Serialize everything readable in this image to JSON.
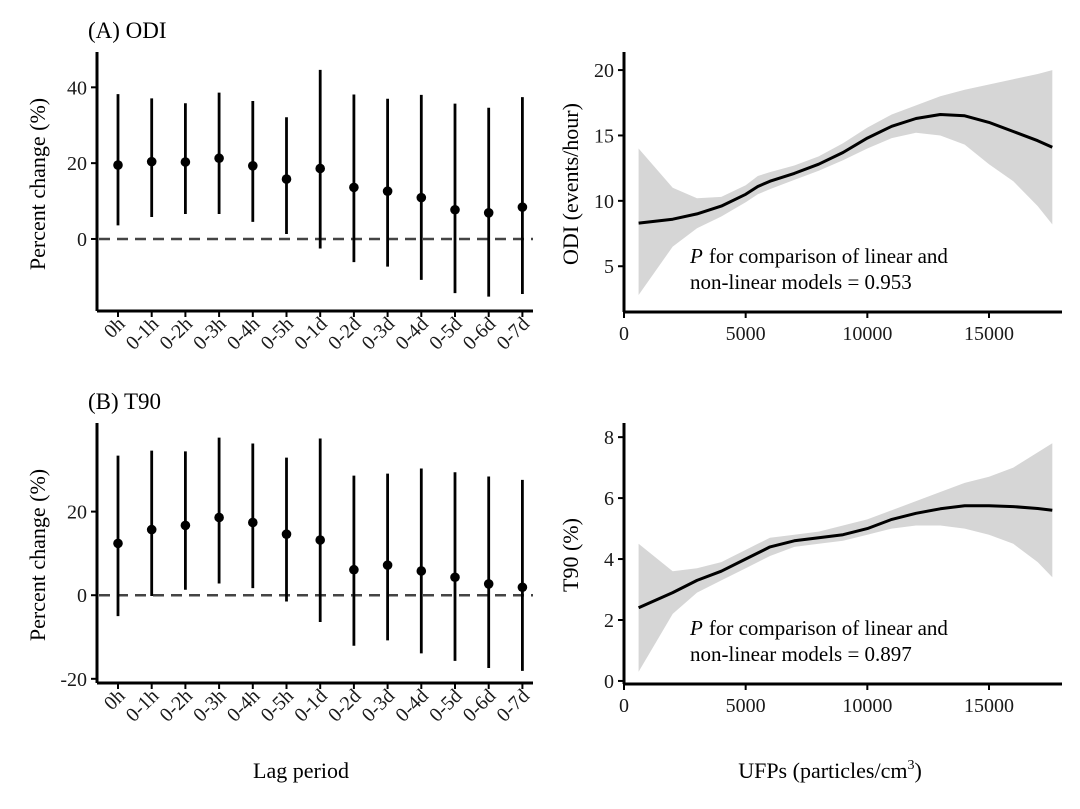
{
  "figure": {
    "x_axis_title_left": "Lag period",
    "x_axis_title_right_prefix": "UFPs (particles/cm",
    "x_axis_title_right_sup": "3",
    "x_axis_title_right_suffix": ")"
  },
  "chart_data": [
    {
      "id": "A-left",
      "type": "scatter",
      "subtype": "point-range",
      "title": "(A) ODI",
      "ylabel": "Percent change (%)",
      "xlabel": "Lag period",
      "ylim": [
        -19,
        48
      ],
      "yticks": [
        0,
        20,
        40
      ],
      "ytick_labels": [
        "0",
        "20",
        "40"
      ],
      "reference_line": 0,
      "categories": [
        "0h",
        "0-1h",
        "0-2h",
        "0-3h",
        "0-4h",
        "0-5h",
        "0-1d",
        "0-2d",
        "0-3d",
        "0-4d",
        "0-5d",
        "0-6d",
        "0-7d"
      ],
      "estimates": [
        19.5,
        20.4,
        20.3,
        21.3,
        19.3,
        15.8,
        18.6,
        13.6,
        12.6,
        10.9,
        7.7,
        6.9,
        8.4
      ],
      "lower": [
        3.6,
        5.8,
        6.6,
        6.6,
        4.5,
        1.3,
        -2.5,
        -6.1,
        -7.3,
        -10.8,
        -14.3,
        -15.2,
        -14.5
      ],
      "upper": [
        38.2,
        37.1,
        35.8,
        38.6,
        36.4,
        32.1,
        44.6,
        38.1,
        37.0,
        38.0,
        35.7,
        34.6,
        37.4
      ]
    },
    {
      "id": "A-right",
      "type": "line",
      "ylabel": "ODI (events/hour)",
      "xlabel": "UFPs (particles/cm³)",
      "xlim": [
        0,
        18000
      ],
      "ylim": [
        1.5,
        21
      ],
      "xticks": [
        0,
        5000,
        10000,
        15000
      ],
      "xtick_labels": [
        "0",
        "5000",
        "10000",
        "15000"
      ],
      "yticks": [
        5,
        10,
        15,
        20
      ],
      "ytick_labels": [
        "5",
        "10",
        "15",
        "20"
      ],
      "x": [
        600,
        2000,
        3000,
        4000,
        5000,
        5500,
        6000,
        7000,
        8000,
        9000,
        10000,
        11000,
        12000,
        13000,
        14000,
        15000,
        16000,
        17000,
        17600
      ],
      "y": [
        8.3,
        8.6,
        9.0,
        9.6,
        10.5,
        11.1,
        11.5,
        12.1,
        12.8,
        13.7,
        14.8,
        15.7,
        16.3,
        16.6,
        16.5,
        16.0,
        15.3,
        14.6,
        14.1
      ],
      "ci_lower": [
        2.8,
        6.5,
        7.9,
        8.8,
        9.9,
        10.5,
        10.9,
        11.6,
        12.3,
        13.1,
        14.0,
        14.8,
        15.2,
        15.0,
        14.3,
        12.8,
        11.5,
        9.6,
        8.2
      ],
      "ci_upper": [
        14.0,
        11.0,
        10.2,
        10.3,
        11.2,
        11.9,
        12.2,
        12.7,
        13.4,
        14.4,
        15.6,
        16.6,
        17.3,
        18.0,
        18.5,
        18.9,
        19.3,
        19.7,
        20.0
      ],
      "annotation_italic": "P",
      "annotation_line1": "for comparison of linear and",
      "annotation_line2": "non-linear models = 0.953"
    },
    {
      "id": "B-left",
      "type": "scatter",
      "subtype": "point-range",
      "title": "(B) T90",
      "ylabel": "Percent change (%)",
      "xlabel": "Lag period",
      "ylim": [
        -21,
        40
      ],
      "yticks": [
        -20,
        0,
        20
      ],
      "ytick_labels": [
        "-20",
        "0",
        "20"
      ],
      "reference_line": 0,
      "categories": [
        "0h",
        "0-1h",
        "0-2h",
        "0-3h",
        "0-4h",
        "0-5h",
        "0-1d",
        "0-2d",
        "0-3d",
        "0-4d",
        "0-5d",
        "0-6d",
        "0-7d"
      ],
      "estimates": [
        12.4,
        15.7,
        16.7,
        18.6,
        17.4,
        14.6,
        13.2,
        6.1,
        7.2,
        5.8,
        4.3,
        2.7,
        1.9
      ],
      "lower": [
        -5.0,
        -0.2,
        1.3,
        2.8,
        1.7,
        -1.5,
        -6.4,
        -12.1,
        -10.8,
        -13.9,
        -15.7,
        -17.4,
        -18.1
      ],
      "upper": [
        33.4,
        34.6,
        34.4,
        37.7,
        36.3,
        32.9,
        37.5,
        28.6,
        29.1,
        30.3,
        29.4,
        28.4,
        27.6
      ]
    },
    {
      "id": "B-right",
      "type": "line",
      "ylabel": "T90 (%)",
      "xlabel": "UFPs (particles/cm³)",
      "xlim": [
        0,
        18000
      ],
      "ylim": [
        -0.1,
        8.3
      ],
      "xticks": [
        0,
        5000,
        10000,
        15000
      ],
      "xtick_labels": [
        "0",
        "5000",
        "10000",
        "15000"
      ],
      "yticks": [
        0,
        2,
        4,
        6,
        8
      ],
      "ytick_labels": [
        "0",
        "2",
        "4",
        "6",
        "8"
      ],
      "x": [
        600,
        2000,
        3000,
        4000,
        5000,
        5500,
        6000,
        7000,
        8000,
        9000,
        10000,
        11000,
        12000,
        13000,
        14000,
        15000,
        16000,
        17000,
        17600
      ],
      "y": [
        2.4,
        2.9,
        3.3,
        3.6,
        4.0,
        4.2,
        4.4,
        4.6,
        4.7,
        4.8,
        5.0,
        5.3,
        5.5,
        5.65,
        5.75,
        5.75,
        5.72,
        5.66,
        5.6
      ],
      "ci_lower": [
        0.3,
        2.2,
        2.9,
        3.3,
        3.7,
        3.9,
        4.1,
        4.4,
        4.5,
        4.6,
        4.8,
        5.0,
        5.1,
        5.1,
        5.0,
        4.8,
        4.5,
        3.9,
        3.4
      ],
      "ci_upper": [
        4.5,
        3.6,
        3.7,
        3.9,
        4.3,
        4.5,
        4.7,
        4.8,
        4.9,
        5.1,
        5.3,
        5.6,
        5.9,
        6.2,
        6.5,
        6.7,
        7.0,
        7.5,
        7.8
      ],
      "annotation_italic": "P",
      "annotation_line1": "for comparison of linear and",
      "annotation_line2": "non-linear models = 0.897"
    }
  ]
}
